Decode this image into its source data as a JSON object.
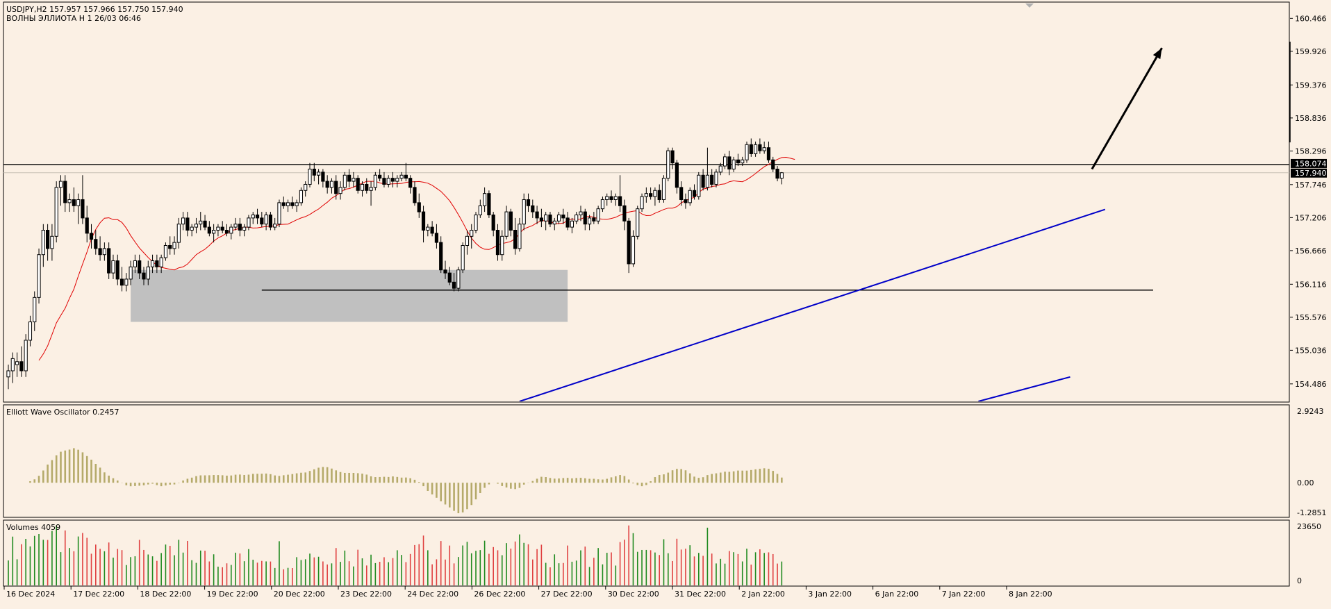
{
  "header": {
    "symbol_line": "USDJPY,H2  157.957 157.966 157.750 157.940",
    "indicator_line": "ВОЛНЫ ЭЛЛИОТА Н 1 26/03 06:46"
  },
  "colors": {
    "background": "#fbf0e4",
    "frame": "#000000",
    "candle_body": "#000000",
    "ma_line": "#e00000",
    "trendline": "#0000c8",
    "zone": "#c0c0c0",
    "osc_bar": "#b5aa6a",
    "vol_up": "#1f8a1f",
    "vol_down": "#e04040",
    "price_tag_bg": "#000000",
    "price_tag_text": "#ffffff"
  },
  "chart_data": [
    {
      "type": "candlestick",
      "panel": "price",
      "ylim": [
        154.2,
        160.72
      ],
      "y_ticks": [
        "160.466",
        "159.926",
        "159.376",
        "158.836",
        "158.296",
        "157.746",
        "157.206",
        "156.666",
        "156.116",
        "155.576",
        "155.036",
        "154.486"
      ],
      "x_ticks": [
        "16 Dec 2024",
        "17 Dec 22:00",
        "18 Dec 22:00",
        "19 Dec 22:00",
        "20 Dec 22:00",
        "23 Dec 22:00",
        "24 Dec 22:00",
        "26 Dec 22:00",
        "27 Dec 22:00",
        "30 Dec 22:00",
        "31 Dec 22:00",
        "2 Jan 22:00",
        "3 Jan 22:00",
        "6 Jan 22:00",
        "7 Jan 22:00",
        "8 Jan 22:00"
      ],
      "price_tags": [
        "158.074",
        "157.940"
      ],
      "levels": [
        {
          "name": "resistance",
          "price": 158.074
        },
        {
          "name": "current",
          "price": 157.94
        }
      ],
      "support": {
        "price": 156.02,
        "from_bar": 58,
        "to_bar": 262
      },
      "zone": {
        "price_high": 156.35,
        "price_low": 155.5,
        "from_bar": 28,
        "to_bar": 128
      },
      "trendlines": [
        {
          "name": "upper-trendline",
          "from": [
            117,
            154.2
          ],
          "to": [
            251,
            157.34
          ]
        },
        {
          "name": "lower-trendline",
          "from": [
            222,
            154.2
          ],
          "to": [
            243,
            154.6
          ]
        }
      ],
      "arrow": {
        "from": [
          248,
          158.0
        ],
        "to": [
          264,
          159.98
        ]
      },
      "ma_period": 13,
      "candles": [
        [
          154.6,
          154.8,
          154.4,
          154.7
        ],
        [
          154.7,
          155.0,
          154.5,
          154.9
        ],
        [
          154.8,
          155.0,
          154.6,
          154.85
        ],
        [
          154.85,
          155.1,
          154.6,
          154.7
        ],
        [
          154.7,
          155.3,
          154.6,
          155.2
        ],
        [
          155.2,
          155.6,
          155.1,
          155.5
        ],
        [
          155.5,
          156.0,
          155.35,
          155.9
        ],
        [
          155.9,
          156.7,
          155.8,
          156.6
        ],
        [
          156.6,
          157.1,
          156.4,
          157.0
        ],
        [
          157.0,
          157.1,
          156.5,
          156.7
        ],
        [
          156.7,
          157.1,
          156.5,
          156.9
        ],
        [
          156.9,
          157.8,
          156.8,
          157.7
        ],
        [
          157.7,
          157.9,
          157.4,
          157.8
        ],
        [
          157.8,
          157.9,
          157.3,
          157.45
        ],
        [
          157.45,
          157.6,
          157.3,
          157.5
        ],
        [
          157.5,
          157.7,
          157.3,
          157.4
        ],
        [
          157.4,
          157.6,
          157.1,
          157.5
        ],
        [
          157.5,
          157.9,
          157.1,
          157.2
        ],
        [
          157.2,
          157.4,
          156.8,
          156.95
        ],
        [
          156.95,
          157.1,
          156.7,
          156.85
        ],
        [
          156.85,
          157.0,
          156.6,
          156.7
        ],
        [
          156.7,
          156.9,
          156.5,
          156.6
        ],
        [
          156.6,
          156.8,
          156.5,
          156.7
        ],
        [
          156.7,
          156.8,
          156.2,
          156.3
        ],
        [
          156.3,
          156.6,
          156.2,
          156.5
        ],
        [
          156.5,
          156.6,
          156.1,
          156.2
        ],
        [
          156.2,
          156.4,
          156.0,
          156.1
        ],
        [
          156.1,
          156.3,
          156.0,
          156.2
        ],
        [
          156.2,
          156.5,
          156.1,
          156.4
        ],
        [
          156.4,
          156.6,
          156.3,
          156.5
        ],
        [
          156.5,
          156.6,
          156.2,
          156.3
        ],
        [
          156.3,
          156.4,
          156.1,
          156.2
        ],
        [
          156.2,
          156.5,
          156.1,
          156.4
        ],
        [
          156.4,
          156.6,
          156.3,
          156.5
        ],
        [
          156.5,
          156.6,
          156.3,
          156.4
        ],
        [
          156.4,
          156.6,
          156.3,
          156.55
        ],
        [
          156.55,
          156.8,
          156.5,
          156.75
        ],
        [
          156.75,
          156.9,
          156.6,
          156.7
        ],
        [
          156.7,
          156.9,
          156.6,
          156.8
        ],
        [
          156.8,
          157.2,
          156.7,
          157.1
        ],
        [
          157.1,
          157.3,
          157.0,
          157.2
        ],
        [
          157.2,
          157.3,
          156.9,
          157.0
        ],
        [
          157.0,
          157.1,
          156.9,
          157.05
        ],
        [
          157.05,
          157.2,
          156.95,
          157.1
        ],
        [
          157.1,
          157.3,
          157.0,
          157.15
        ],
        [
          157.15,
          157.25,
          157.0,
          157.05
        ],
        [
          157.05,
          157.15,
          156.9,
          156.95
        ],
        [
          156.95,
          157.1,
          156.8,
          157.0
        ],
        [
          157.0,
          157.1,
          156.9,
          157.05
        ],
        [
          157.05,
          157.15,
          156.95,
          157.0
        ],
        [
          157.0,
          157.1,
          156.9,
          156.95
        ],
        [
          156.95,
          157.1,
          156.85,
          157.05
        ],
        [
          157.05,
          157.2,
          157.0,
          157.1
        ],
        [
          157.1,
          157.2,
          156.9,
          157.0
        ],
        [
          157.0,
          157.1,
          156.9,
          157.05
        ],
        [
          157.05,
          157.25,
          157.0,
          157.2
        ],
        [
          157.2,
          157.3,
          157.1,
          157.25
        ],
        [
          157.25,
          157.35,
          157.1,
          157.2
        ],
        [
          157.2,
          157.3,
          157.05,
          157.1
        ],
        [
          157.1,
          157.3,
          157.0,
          157.25
        ],
        [
          157.25,
          157.3,
          157.0,
          157.05
        ],
        [
          157.05,
          157.2,
          157.0,
          157.1
        ],
        [
          157.1,
          157.5,
          157.05,
          157.45
        ],
        [
          157.45,
          157.55,
          157.35,
          157.4
        ],
        [
          157.4,
          157.5,
          157.3,
          157.45
        ],
        [
          157.45,
          157.55,
          157.35,
          157.4
        ],
        [
          157.4,
          157.5,
          157.3,
          157.45
        ],
        [
          157.45,
          157.7,
          157.4,
          157.65
        ],
        [
          157.65,
          157.8,
          157.55,
          157.75
        ],
        [
          157.75,
          158.1,
          157.7,
          158.0
        ],
        [
          158.0,
          158.1,
          157.8,
          157.9
        ],
        [
          157.9,
          158.0,
          157.75,
          157.95
        ],
        [
          157.95,
          158.0,
          157.7,
          157.8
        ],
        [
          157.8,
          157.9,
          157.6,
          157.7
        ],
        [
          157.7,
          157.85,
          157.6,
          157.8
        ],
        [
          157.8,
          157.9,
          157.5,
          157.6
        ],
        [
          157.6,
          157.8,
          157.5,
          157.7
        ],
        [
          157.7,
          157.95,
          157.65,
          157.9
        ],
        [
          157.9,
          158.0,
          157.7,
          157.8
        ],
        [
          157.8,
          157.95,
          157.7,
          157.85
        ],
        [
          157.85,
          157.9,
          157.6,
          157.65
        ],
        [
          157.65,
          157.8,
          157.55,
          157.75
        ],
        [
          157.75,
          157.85,
          157.6,
          157.65
        ],
        [
          157.65,
          157.8,
          157.4,
          157.7
        ],
        [
          157.7,
          157.95,
          157.65,
          157.9
        ],
        [
          157.9,
          158.0,
          157.8,
          157.85
        ],
        [
          157.85,
          157.95,
          157.7,
          157.75
        ],
        [
          157.75,
          157.9,
          157.7,
          157.85
        ],
        [
          157.85,
          157.95,
          157.7,
          157.8
        ],
        [
          157.8,
          157.9,
          157.7,
          157.85
        ],
        [
          157.85,
          157.95,
          157.8,
          157.9
        ],
        [
          157.9,
          158.1,
          157.8,
          157.85
        ],
        [
          157.85,
          157.9,
          157.6,
          157.7
        ],
        [
          157.7,
          157.8,
          157.4,
          157.45
        ],
        [
          157.45,
          157.6,
          157.2,
          157.3
        ],
        [
          157.3,
          157.4,
          156.8,
          157.0
        ],
        [
          157.0,
          157.1,
          156.9,
          157.05
        ],
        [
          157.05,
          157.15,
          156.9,
          156.95
        ],
        [
          156.95,
          157.1,
          156.7,
          156.8
        ],
        [
          156.8,
          156.9,
          156.3,
          156.35
        ],
        [
          156.35,
          156.5,
          156.2,
          156.3
        ],
        [
          156.3,
          156.4,
          156.1,
          156.15
        ],
        [
          156.15,
          156.3,
          156.0,
          156.05
        ],
        [
          156.05,
          156.4,
          156.0,
          156.35
        ],
        [
          156.35,
          156.8,
          156.3,
          156.75
        ],
        [
          156.75,
          157.0,
          156.6,
          156.9
        ],
        [
          156.9,
          157.1,
          156.7,
          157.0
        ],
        [
          157.0,
          157.3,
          156.95,
          157.25
        ],
        [
          157.25,
          157.5,
          157.2,
          157.4
        ],
        [
          157.4,
          157.7,
          157.3,
          157.6
        ],
        [
          157.6,
          157.65,
          157.2,
          157.25
        ],
        [
          157.25,
          157.3,
          156.9,
          157.0
        ],
        [
          157.0,
          157.1,
          156.5,
          156.6
        ],
        [
          156.6,
          157.0,
          156.5,
          156.9
        ],
        [
          156.9,
          157.4,
          156.85,
          157.3
        ],
        [
          157.3,
          157.35,
          156.9,
          157.0
        ],
        [
          157.0,
          157.2,
          156.6,
          156.7
        ],
        [
          156.7,
          157.2,
          156.65,
          157.1
        ],
        [
          157.1,
          157.6,
          157.0,
          157.5
        ],
        [
          157.5,
          157.6,
          157.3,
          157.4
        ],
        [
          157.4,
          157.5,
          157.2,
          157.3
        ],
        [
          157.3,
          157.4,
          157.1,
          157.2
        ],
        [
          157.2,
          157.35,
          157.05,
          157.15
        ],
        [
          157.15,
          157.3,
          157.0,
          157.25
        ],
        [
          157.25,
          157.3,
          157.05,
          157.1
        ],
        [
          157.1,
          157.2,
          157.0,
          157.15
        ],
        [
          157.15,
          157.3,
          157.1,
          157.25
        ],
        [
          157.25,
          157.35,
          157.1,
          157.2
        ],
        [
          157.2,
          157.3,
          157.0,
          157.05
        ],
        [
          157.05,
          157.2,
          156.95,
          157.15
        ],
        [
          157.15,
          157.3,
          157.1,
          157.25
        ],
        [
          157.25,
          157.4,
          157.15,
          157.3
        ],
        [
          157.3,
          157.35,
          157.0,
          157.1
        ],
        [
          157.1,
          157.25,
          157.0,
          157.2
        ],
        [
          157.2,
          157.3,
          157.1,
          157.15
        ],
        [
          157.15,
          157.4,
          157.1,
          157.35
        ],
        [
          157.35,
          157.55,
          157.3,
          157.5
        ],
        [
          157.5,
          157.6,
          157.4,
          157.55
        ],
        [
          157.55,
          157.65,
          157.45,
          157.5
        ],
        [
          157.5,
          157.6,
          157.4,
          157.55
        ],
        [
          157.55,
          157.9,
          157.3,
          157.4
        ],
        [
          157.4,
          157.5,
          157.0,
          157.15
        ],
        [
          157.15,
          157.2,
          156.3,
          156.45
        ],
        [
          156.45,
          157.0,
          156.4,
          156.9
        ],
        [
          156.9,
          157.4,
          156.85,
          157.35
        ],
        [
          157.35,
          157.6,
          157.3,
          157.55
        ],
        [
          157.55,
          157.7,
          157.45,
          157.6
        ],
        [
          157.6,
          157.7,
          157.5,
          157.55
        ],
        [
          157.55,
          157.7,
          157.4,
          157.65
        ],
        [
          157.65,
          157.75,
          157.45,
          157.5
        ],
        [
          157.5,
          157.9,
          157.45,
          157.85
        ],
        [
          157.85,
          158.35,
          157.8,
          158.3
        ],
        [
          158.3,
          158.35,
          158.0,
          158.1
        ],
        [
          158.1,
          158.15,
          157.6,
          157.7
        ],
        [
          157.7,
          157.8,
          157.4,
          157.5
        ],
        [
          157.5,
          157.6,
          157.35,
          157.45
        ],
        [
          157.45,
          157.7,
          157.4,
          157.65
        ],
        [
          157.65,
          157.75,
          157.5,
          157.55
        ],
        [
          157.55,
          157.95,
          157.5,
          157.9
        ],
        [
          157.9,
          158.0,
          157.65,
          157.7
        ],
        [
          157.7,
          158.35,
          157.65,
          157.9
        ],
        [
          157.9,
          158.0,
          157.7,
          157.75
        ],
        [
          157.75,
          158.0,
          157.7,
          157.95
        ],
        [
          157.95,
          158.1,
          157.9,
          158.05
        ],
        [
          158.05,
          158.25,
          158.0,
          158.2
        ],
        [
          158.2,
          158.3,
          157.9,
          158.0
        ],
        [
          158.0,
          158.2,
          157.95,
          158.15
        ],
        [
          158.15,
          158.25,
          158.05,
          158.1
        ],
        [
          158.1,
          158.2,
          158.05,
          158.15
        ],
        [
          158.15,
          158.45,
          158.1,
          158.4
        ],
        [
          158.4,
          158.5,
          158.2,
          158.25
        ],
        [
          158.25,
          158.45,
          158.2,
          158.4
        ],
        [
          158.4,
          158.5,
          158.25,
          158.3
        ],
        [
          158.3,
          158.45,
          158.25,
          158.35
        ],
        [
          158.35,
          158.45,
          158.1,
          158.15
        ],
        [
          158.15,
          158.2,
          157.95,
          158.0
        ],
        [
          158.0,
          158.05,
          157.8,
          157.85
        ],
        [
          157.85,
          157.95,
          157.75,
          157.94
        ]
      ]
    },
    {
      "type": "bar",
      "panel": "oscillator",
      "title": "Elliott Wave Oscillator 0.2457",
      "ylim": [
        -1.2851,
        2.9243
      ],
      "y_ticks": [
        "2.9243",
        "0.00",
        "-1.2851"
      ]
    },
    {
      "type": "bar",
      "panel": "volume",
      "title": "Volumes 4059",
      "ylim": [
        0,
        23650
      ],
      "y_ticks": [
        "23650",
        "0"
      ],
      "up_color": "#1f8a1f",
      "down_color": "#e04040"
    }
  ]
}
